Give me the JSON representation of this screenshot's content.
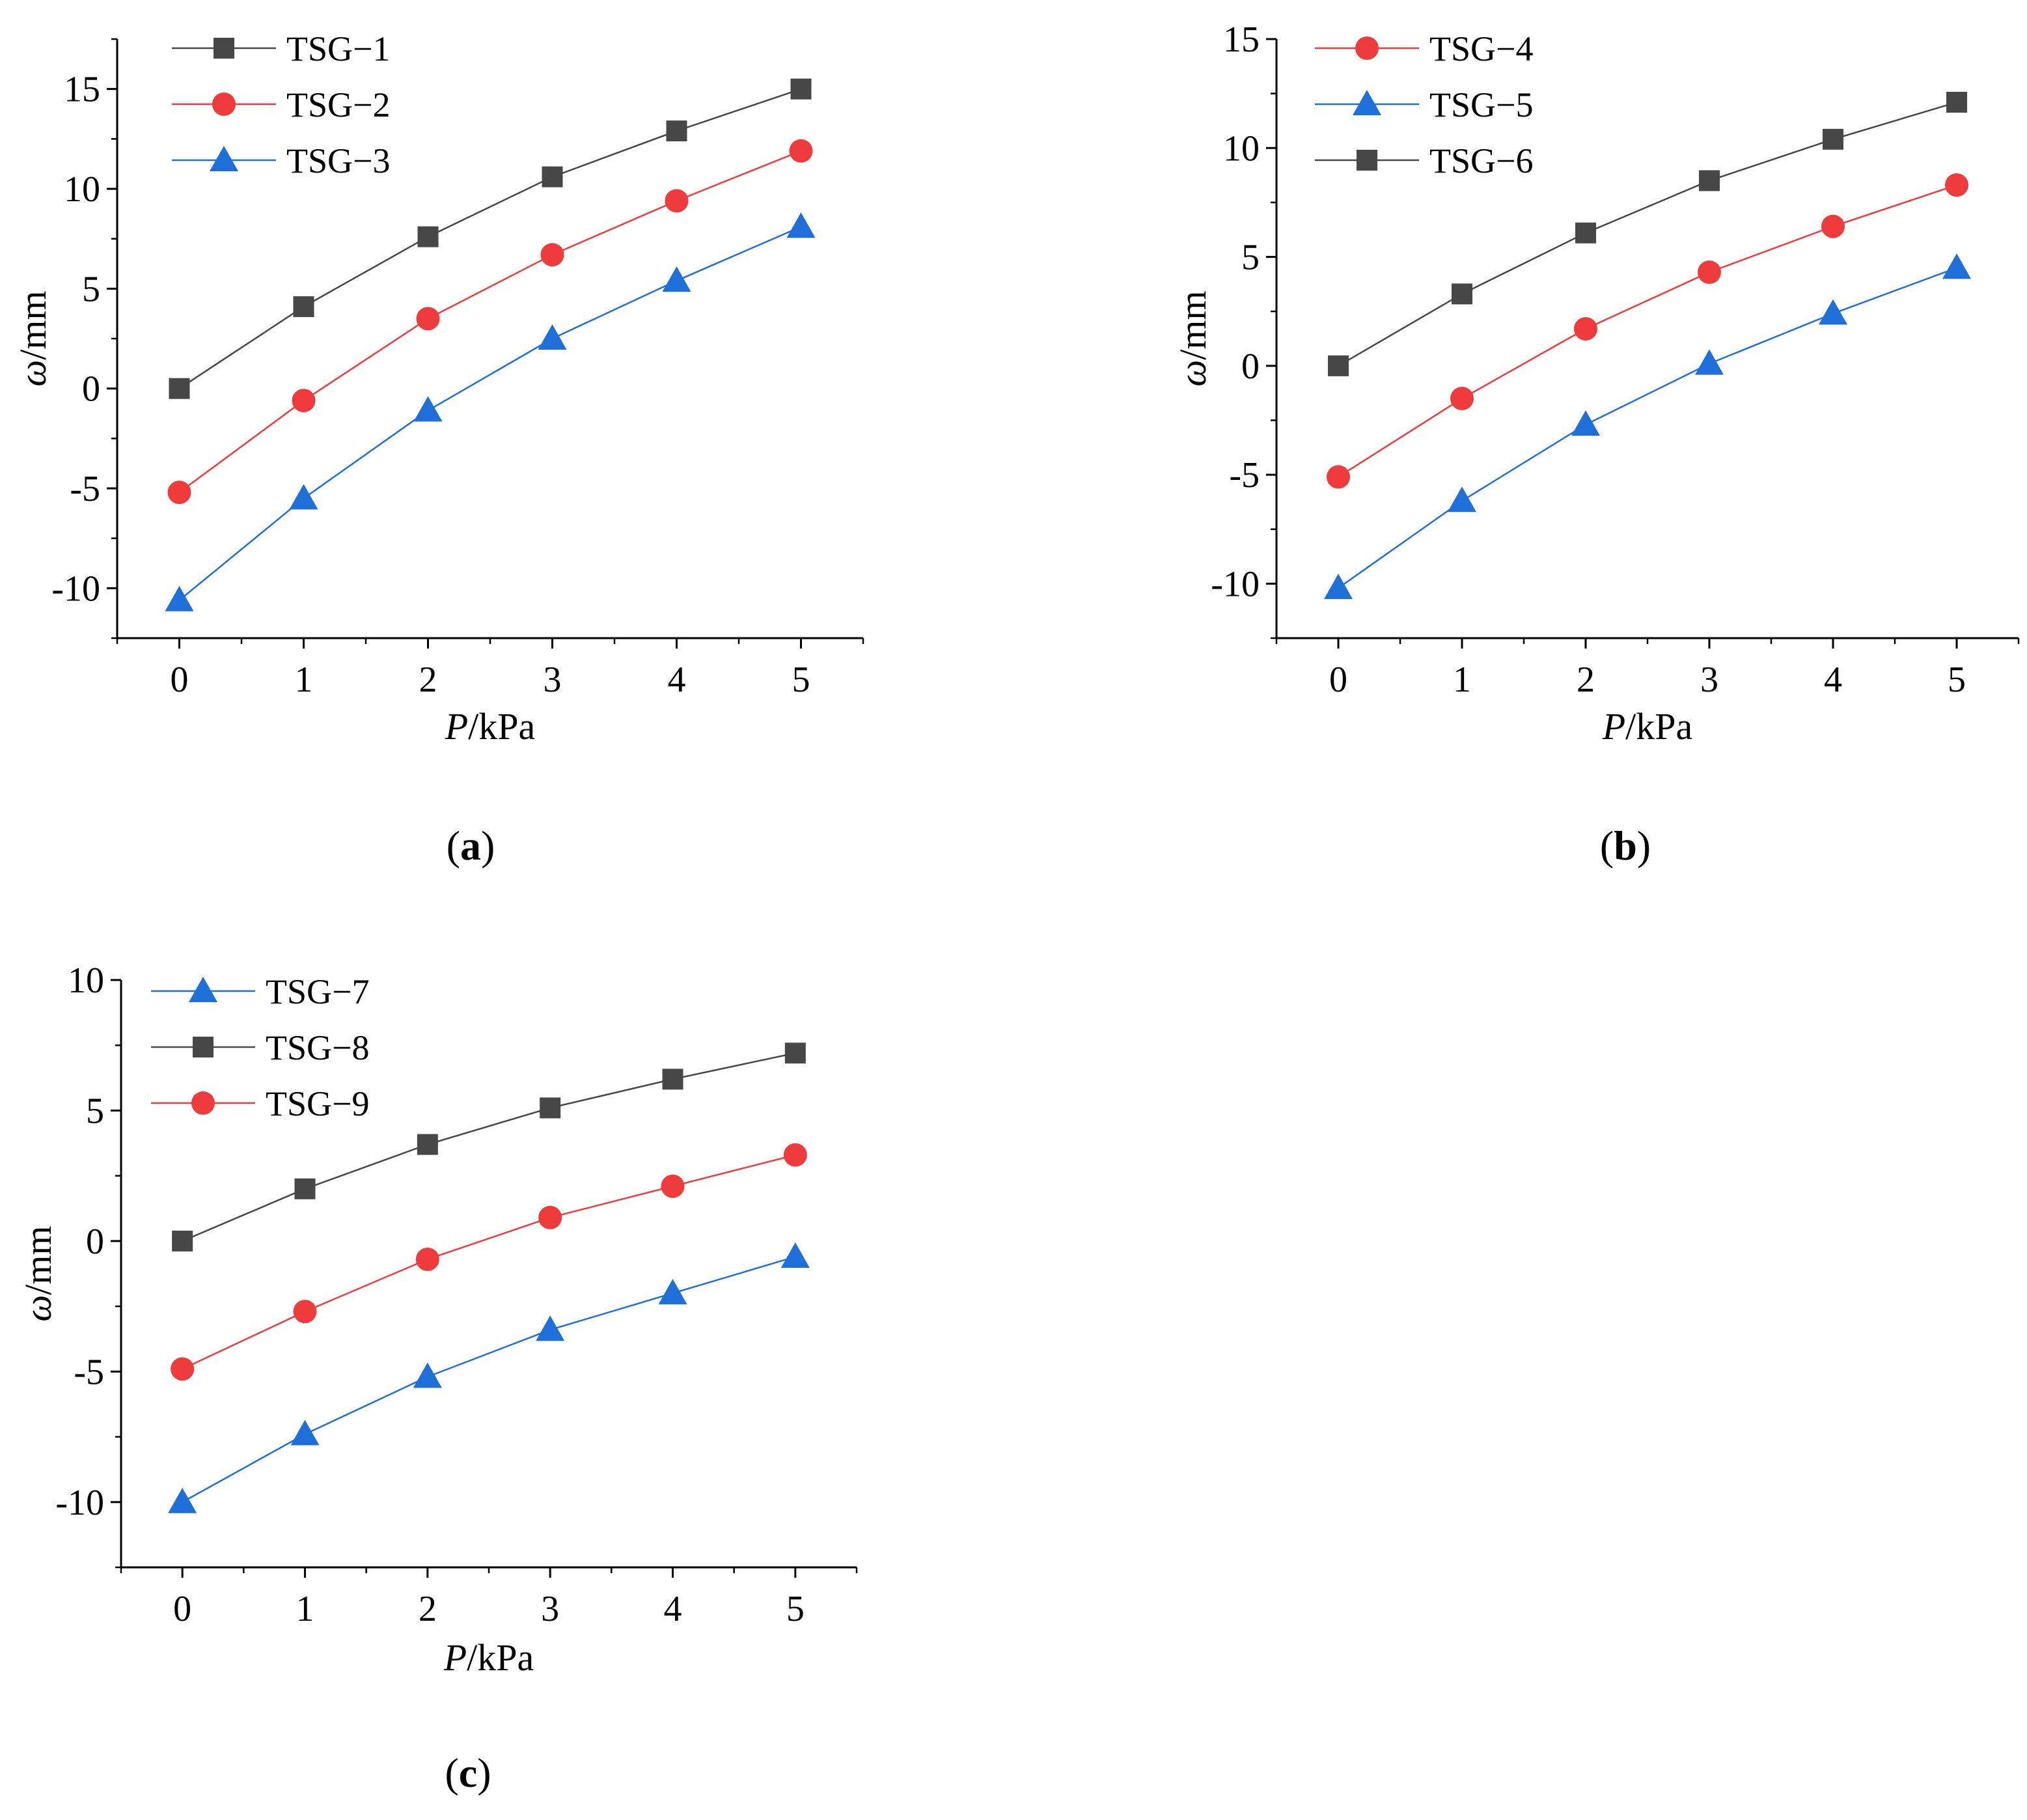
{
  "colors": {
    "black_series": "#474747",
    "red_series": "#ef3b3b",
    "blue_series": "#1f6fdb",
    "axis": "#000000"
  },
  "chart_data": [
    {
      "type": "line",
      "panel_label": "a",
      "xlabel": {
        "italic": "P",
        "rest": "/kPa"
      },
      "ylabel": {
        "italic": "ω",
        "rest": "/mm"
      },
      "x": [
        0,
        1,
        2,
        3,
        4,
        5
      ],
      "xticks": [
        0,
        1,
        2,
        3,
        4,
        5
      ],
      "yticks": [
        -10,
        -5,
        0,
        5,
        10,
        15
      ],
      "xlim": [
        -0.5,
        5.5
      ],
      "ylim": [
        -12.5,
        17.5
      ],
      "legend_position": "top-left",
      "series": [
        {
          "name": "TSG−1",
          "marker": "square",
          "color": "black",
          "values": [
            0,
            4.1,
            7.6,
            10.6,
            12.9,
            15.0
          ]
        },
        {
          "name": "TSG−2",
          "marker": "circle",
          "color": "red",
          "values": [
            -5.2,
            -0.6,
            3.5,
            6.7,
            9.4,
            11.9
          ]
        },
        {
          "name": "TSG−3",
          "marker": "triangle",
          "color": "blue",
          "values": [
            -10.6,
            -5.5,
            -1.1,
            2.5,
            5.4,
            8.1
          ]
        }
      ]
    },
    {
      "type": "line",
      "panel_label": "b",
      "xlabel": {
        "italic": "P",
        "rest": "/kPa"
      },
      "ylabel": {
        "italic": "ω",
        "rest": "/mm"
      },
      "x": [
        0,
        1,
        2,
        3,
        4,
        5
      ],
      "xticks": [
        0,
        1,
        2,
        3,
        4,
        5
      ],
      "yticks": [
        -10,
        -5,
        0,
        5,
        10,
        15
      ],
      "xlim": [
        -0.5,
        5.5
      ],
      "ylim": [
        -12.5,
        15
      ],
      "legend_position": "top-left",
      "series": [
        {
          "name": "TSG−4",
          "marker": "circle",
          "color": "red",
          "values": [
            -5.1,
            -1.5,
            1.7,
            4.3,
            6.4,
            8.3
          ]
        },
        {
          "name": "TSG−5",
          "marker": "triangle",
          "color": "blue",
          "values": [
            -10.2,
            -6.2,
            -2.7,
            0.1,
            2.4,
            4.5
          ]
        },
        {
          "name": "TSG−6",
          "marker": "square",
          "color": "black",
          "values": [
            0,
            3.3,
            6.1,
            8.5,
            10.4,
            12.1
          ]
        }
      ]
    },
    {
      "type": "line",
      "panel_label": "c",
      "xlabel": {
        "italic": "P",
        "rest": "/kPa"
      },
      "ylabel": {
        "italic": "ω",
        "rest": "/mm"
      },
      "x": [
        0,
        1,
        2,
        3,
        4,
        5
      ],
      "xticks": [
        0,
        1,
        2,
        3,
        4,
        5
      ],
      "yticks": [
        -10,
        -5,
        0,
        5,
        10
      ],
      "xlim": [
        -0.5,
        5.5
      ],
      "ylim": [
        -12.5,
        10
      ],
      "legend_position": "top-left",
      "series": [
        {
          "name": "TSG−7",
          "marker": "triangle",
          "color": "blue",
          "values": [
            -10.0,
            -7.4,
            -5.2,
            -3.4,
            -2.0,
            -0.6
          ]
        },
        {
          "name": "TSG−8",
          "marker": "square",
          "color": "black",
          "values": [
            0,
            2.0,
            3.7,
            5.1,
            6.2,
            7.2
          ]
        },
        {
          "name": "TSG−9",
          "marker": "circle",
          "color": "red",
          "values": [
            -4.9,
            -2.7,
            -0.7,
            0.9,
            2.1,
            3.3
          ]
        }
      ]
    }
  ]
}
